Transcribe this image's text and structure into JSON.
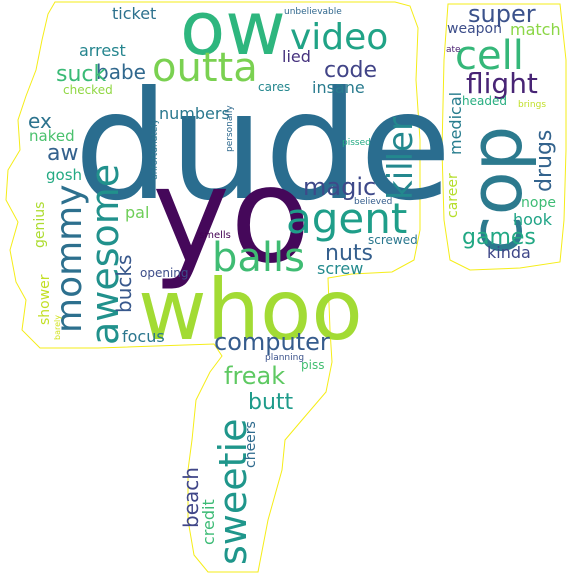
{
  "words": [
    {
      "text": "dude",
      "color": "#2a6d8f"
    },
    {
      "text": "yo",
      "color": "#45085a"
    },
    {
      "text": "whoo",
      "color": "#a2db34"
    },
    {
      "text": "ow",
      "color": "#2eb67e"
    },
    {
      "text": "cop",
      "color": "#2c7a8e"
    },
    {
      "text": "video",
      "color": "#20a386"
    },
    {
      "text": "outta",
      "color": "#7ad151"
    },
    {
      "text": "agent",
      "color": "#1f9e89"
    },
    {
      "text": "balls",
      "color": "#3fbc73"
    },
    {
      "text": "awesome",
      "color": "#21918c"
    },
    {
      "text": "mommy",
      "color": "#2d708e"
    },
    {
      "text": "killer",
      "color": "#23888e"
    },
    {
      "text": "cell",
      "color": "#35b779"
    },
    {
      "text": "sweetie",
      "color": "#1f968b"
    },
    {
      "text": "flight",
      "color": "#482475"
    },
    {
      "text": "super",
      "color": "#3b528b"
    },
    {
      "text": "magic",
      "color": "#3e4989"
    },
    {
      "text": "computer",
      "color": "#365c8d"
    },
    {
      "text": "code",
      "color": "#414487"
    },
    {
      "text": "nuts",
      "color": "#355f8d"
    },
    {
      "text": "freak",
      "color": "#5ec962"
    },
    {
      "text": "babe",
      "color": "#31688e"
    },
    {
      "text": "suck",
      "color": "#3aba76"
    },
    {
      "text": "drugs",
      "color": "#33638d"
    },
    {
      "text": "games",
      "color": "#22a884"
    },
    {
      "text": "butt",
      "color": "#1e9b8a"
    },
    {
      "text": "beach",
      "color": "#404688"
    },
    {
      "text": "bucks",
      "color": "#38588c"
    },
    {
      "text": "aw",
      "color": "#34618d"
    },
    {
      "text": "ex",
      "color": "#2c738e"
    },
    {
      "text": "lied",
      "color": "#46327e"
    },
    {
      "text": "insane",
      "color": "#297b8e"
    },
    {
      "text": "numbers",
      "color": "#2a788e"
    },
    {
      "text": "screw",
      "color": "#238a8d"
    },
    {
      "text": "kinda",
      "color": "#3f4788"
    },
    {
      "text": "match",
      "color": "#8bd646"
    },
    {
      "text": "arrest",
      "color": "#25858e"
    },
    {
      "text": "ticket",
      "color": "#2d718e"
    },
    {
      "text": "weapon",
      "color": "#3d4e8a"
    },
    {
      "text": "medical",
      "color": "#287d8e"
    },
    {
      "text": "career",
      "color": "#b5de2b"
    },
    {
      "text": "hook",
      "color": "#20a486"
    },
    {
      "text": "nope",
      "color": "#3dbc74"
    },
    {
      "text": "pal",
      "color": "#6ece58"
    },
    {
      "text": "focus",
      "color": "#2a768e"
    },
    {
      "text": "naked",
      "color": "#4ac16d"
    },
    {
      "text": "gosh",
      "color": "#24aa83"
    },
    {
      "text": "genius",
      "color": "#addc30"
    },
    {
      "text": "shower",
      "color": "#c2df23"
    },
    {
      "text": "credit",
      "color": "#3cbb75"
    },
    {
      "text": "cheers",
      "color": "#2f6b8e"
    },
    {
      "text": "opening",
      "color": "#3d4d8a"
    },
    {
      "text": "piss",
      "color": "#42be71"
    },
    {
      "text": "headed",
      "color": "#28ae80"
    },
    {
      "text": "checked",
      "color": "#90d743"
    },
    {
      "text": "cares",
      "color": "#24878e"
    },
    {
      "text": "screwed",
      "color": "#2a778e"
    },
    {
      "text": "smells",
      "color": "#440154"
    },
    {
      "text": "unfortunately",
      "color": "#2b758e"
    },
    {
      "text": "personally",
      "color": "#306a8e"
    },
    {
      "text": "unbelievable",
      "color": "#31688e"
    },
    {
      "text": "believed",
      "color": "#355e8d"
    },
    {
      "text": "planning",
      "color": "#3b528b"
    },
    {
      "text": "pissed",
      "color": "#23a983"
    },
    {
      "text": "ate",
      "color": "#481f70"
    },
    {
      "text": "brings",
      "color": "#c0df25"
    },
    {
      "text": "barely",
      "color": "#d2e21b"
    }
  ],
  "outline_color": "#f5ed18"
}
